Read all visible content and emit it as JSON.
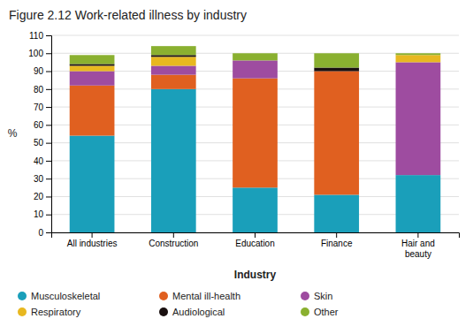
{
  "chart_data": {
    "type": "bar",
    "stacked": true,
    "title": "Figure 2.12  Work-related illness by industry",
    "xlabel": "Industry",
    "ylabel": "%",
    "categories": [
      "All industries",
      "Construction",
      "Education",
      "Finance",
      "Hair and\nbeauty"
    ],
    "series": [
      {
        "name": "Musculoskeletal",
        "color": "#1a9fba",
        "values": [
          54,
          80,
          25,
          21,
          32
        ]
      },
      {
        "name": "Mental ill-health",
        "color": "#e06020",
        "values": [
          28,
          8,
          61,
          69,
          0
        ]
      },
      {
        "name": "Skin",
        "color": "#9e4ca0",
        "values": [
          8,
          5,
          10,
          0,
          63
        ]
      },
      {
        "name": "Respiratory",
        "color": "#e8b820",
        "values": [
          3,
          5,
          0,
          0,
          4
        ]
      },
      {
        "name": "Audiological",
        "color": "#1a1010",
        "values": [
          1,
          1,
          0,
          2,
          0
        ]
      },
      {
        "name": "Other",
        "color": "#8ab030",
        "values": [
          5,
          5,
          4,
          8,
          1
        ]
      }
    ],
    "ylim": [
      0,
      110
    ],
    "yticks": [
      0,
      10,
      20,
      30,
      40,
      50,
      60,
      70,
      80,
      90,
      100,
      110
    ],
    "grid": true,
    "legend": "bottom"
  }
}
